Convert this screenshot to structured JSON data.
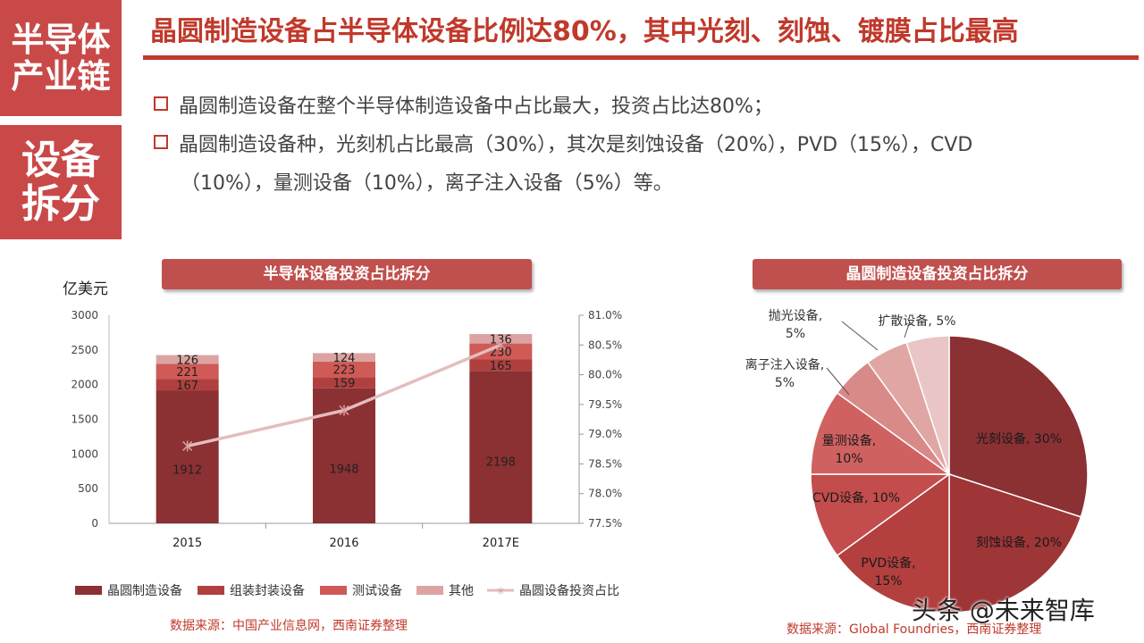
{
  "sidebar": {
    "block1": [
      "半导体",
      "产业链"
    ],
    "block2": [
      "设备",
      "拆分"
    ]
  },
  "header": {
    "title": "晶圆制造设备占半导体设备比例达80%，其中光刻、刻蚀、镀膜占比最高"
  },
  "bullets": [
    "晶圆制造设备在整个半导体制造设备中占比最大，投资占比达80%；",
    "晶圆制造设备种，光刻机占比最高（30%），其次是刻蚀设备（20%），PVD（15%），CVD",
    "（10%），量测设备（10%），离子注入设备（5%）等。"
  ],
  "bar_panel": {
    "title": "半导体设备投资占比拆分",
    "source": "数据来源：中国产业信息网，西南证券整理"
  },
  "pie_panel": {
    "title": "晶圆制造设备投资占比拆分",
    "source": "数据来源：Global Foundries，西南证券整理"
  },
  "watermark": "头条 @未来智库",
  "colors": {
    "accent": "#c0392b",
    "wafer": "#8b3033",
    "packaging": "#b0403f",
    "testing": "#cf5a56",
    "other": "#dba4a2",
    "line": "#e3bdbd"
  },
  "chart_data": [
    {
      "type": "bar",
      "stacked": true,
      "ylabel": "亿美元",
      "categories": [
        "2015",
        "2016",
        "2017E"
      ],
      "ylim": [
        0,
        3000
      ],
      "yticks": [
        0,
        500,
        1000,
        1500,
        2000,
        2500,
        3000
      ],
      "y2lim": [
        77.5,
        81.0
      ],
      "y2ticks": [
        "77.5%",
        "78.0%",
        "78.5%",
        "79.0%",
        "79.5%",
        "80.0%",
        "80.5%",
        "81.0%"
      ],
      "series": [
        {
          "name": "晶圆制造设备",
          "values": [
            1912,
            1948,
            2198
          ],
          "color": "#8b3033"
        },
        {
          "name": "组装封装设备",
          "values": [
            167,
            159,
            165
          ],
          "color": "#b0403f"
        },
        {
          "name": "测试设备",
          "values": [
            221,
            223,
            230
          ],
          "color": "#cf5a56"
        },
        {
          "name": "其他",
          "values": [
            126,
            124,
            136
          ],
          "color": "#dba4a2"
        }
      ],
      "line_series": {
        "name": "晶圆设备投资占比",
        "axis": "right",
        "values": [
          78.8,
          79.4,
          80.5
        ],
        "color": "#e3bdbd"
      },
      "legend": "bottom"
    },
    {
      "type": "pie",
      "slices": [
        {
          "label": "光刻设备, 30%",
          "value": 30,
          "color": "#8b3033"
        },
        {
          "label": "刻蚀设备, 20%",
          "value": 20,
          "color": "#9e3537"
        },
        {
          "label": "PVD设备, 15%",
          "value": 15,
          "color": "#b33f3f"
        },
        {
          "label": "CVD设备, 10%",
          "value": 10,
          "color": "#c34d4c"
        },
        {
          "label": "量测设备, 10%",
          "value": 10,
          "color": "#cf6261"
        },
        {
          "label": "离子注入设备, 5%",
          "value": 5,
          "color": "#d88a88"
        },
        {
          "label": "抛光设备, 5%",
          "value": 5,
          "color": "#e0a6a4"
        },
        {
          "label": "扩散设备, 5%",
          "value": 5,
          "color": "#e9c6c5"
        }
      ]
    }
  ]
}
